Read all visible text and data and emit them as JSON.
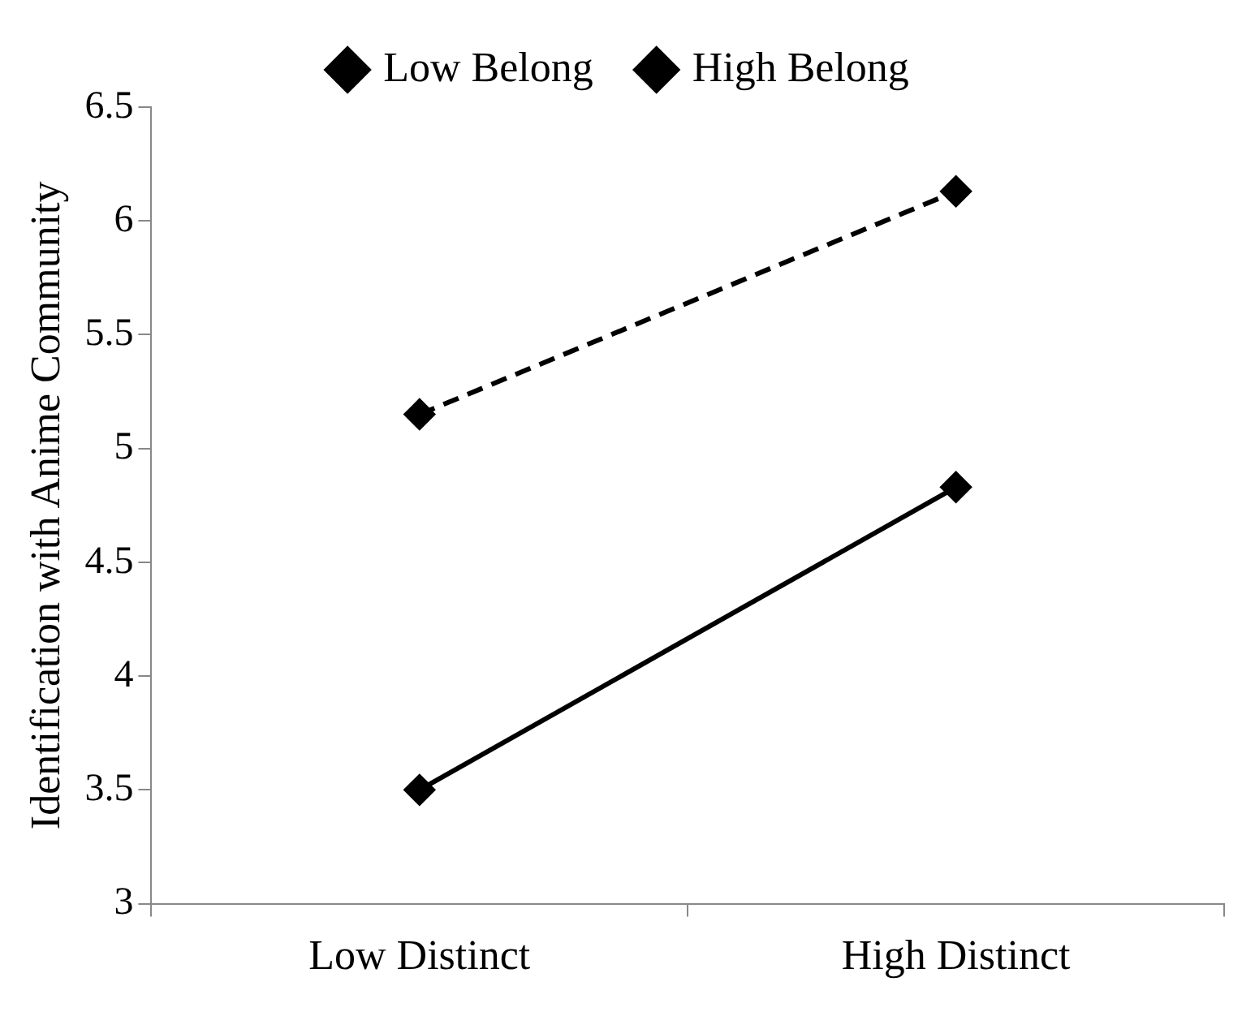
{
  "chart_data": {
    "type": "line",
    "ylabel": "Identification with Anime Community",
    "categories": [
      "Low Distinct",
      "High Distinct"
    ],
    "series": [
      {
        "name": "Low Belong",
        "color": "#000000",
        "values": [
          3.5,
          4.83
        ],
        "line_style": "solid"
      },
      {
        "name": "High Belong",
        "color": "#000000",
        "values": [
          5.15,
          6.13
        ],
        "line_style": "dashed"
      }
    ],
    "ylim": [
      3,
      6.5
    ],
    "yticks": [
      3,
      3.5,
      4,
      4.5,
      5,
      5.5,
      6,
      6.5
    ],
    "grid": false,
    "legend": "top",
    "marker": "diamond"
  }
}
